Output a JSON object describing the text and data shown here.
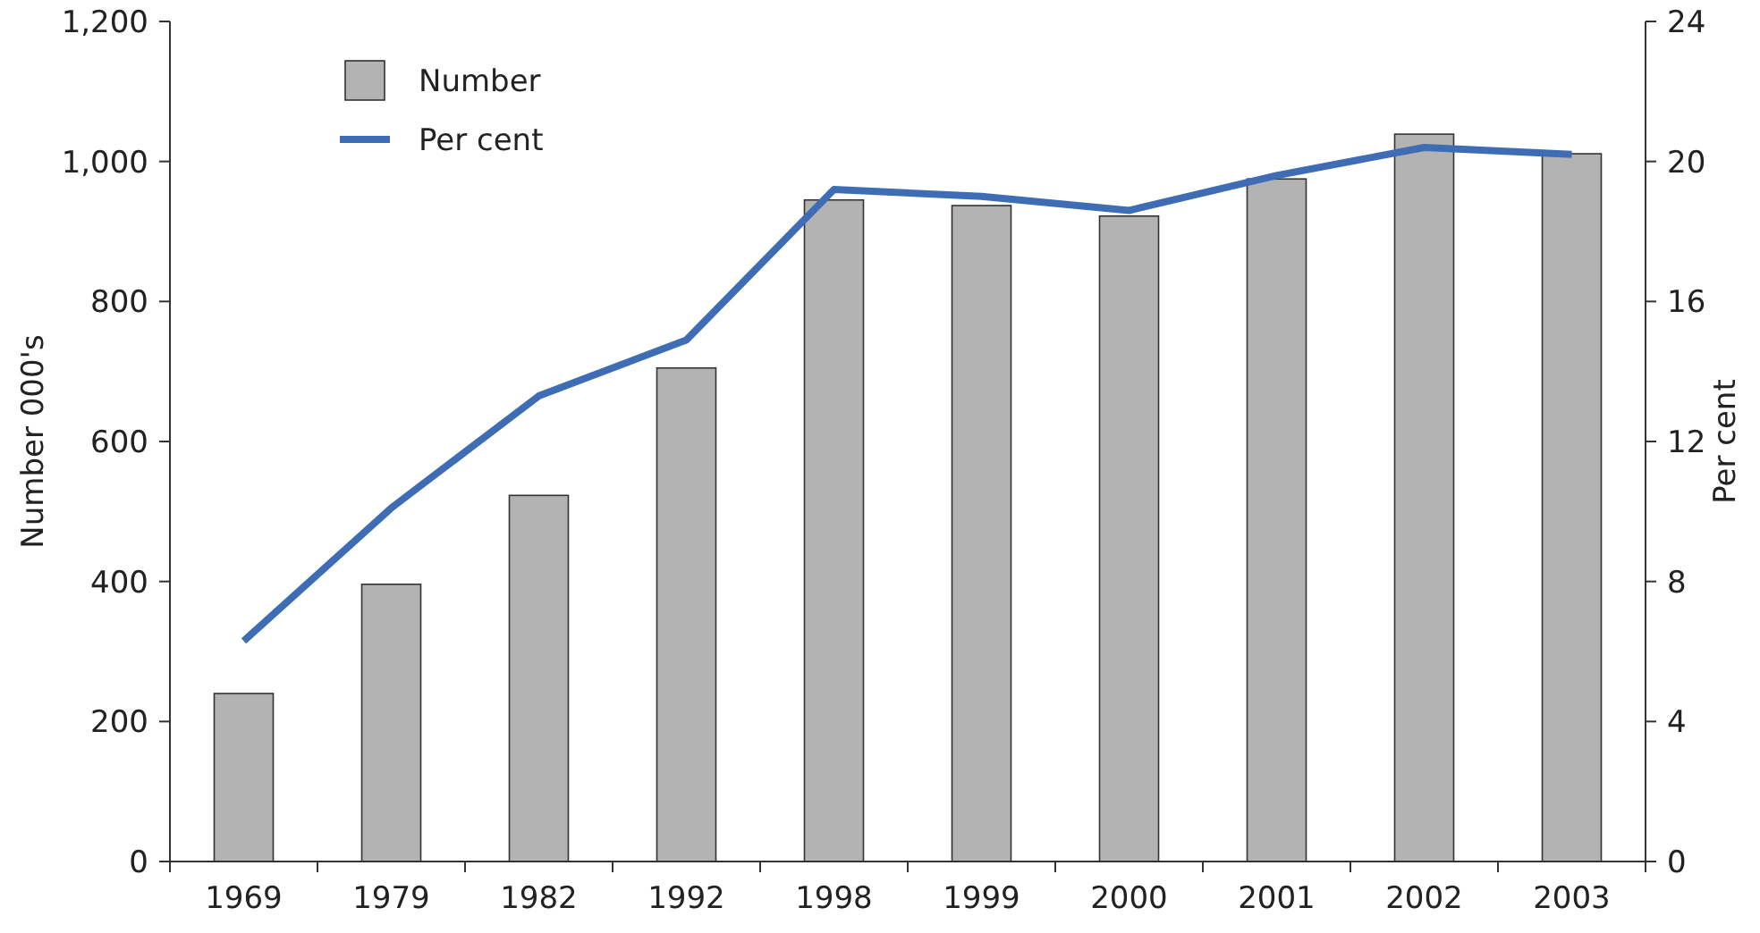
{
  "chart_data": {
    "type": "bar",
    "categories": [
      "1969",
      "1979",
      "1982",
      "1992",
      "1998",
      "1999",
      "2000",
      "2001",
      "2002",
      "2003"
    ],
    "ylabel": "Number 000's",
    "y2label": "Per cent",
    "series": [
      {
        "name": "Number",
        "color": "#b3b3b3",
        "values": [
          240,
          396,
          523,
          705,
          945,
          937,
          922,
          975,
          1039,
          1011
        ]
      },
      {
        "name": "Per cent",
        "type": "line",
        "axis": "y2",
        "color": "#3e6db5",
        "values": [
          6.3,
          10.1,
          13.3,
          14.9,
          19.2,
          19.0,
          18.6,
          19.6,
          20.4,
          20.2
        ]
      }
    ],
    "ylim": [
      0,
      1200
    ],
    "yticks": [
      0,
      200,
      400,
      600,
      800,
      {
        "value": 1000,
        "label": "1,000"
      },
      {
        "value": 1200,
        "label": "1,200"
      }
    ],
    "y2lim": [
      0,
      24
    ],
    "y2ticks": [
      0,
      4,
      8,
      12,
      16,
      20,
      24
    ],
    "legend": "top left",
    "marker": "none",
    "line_style": "solid",
    "grid": false
  }
}
